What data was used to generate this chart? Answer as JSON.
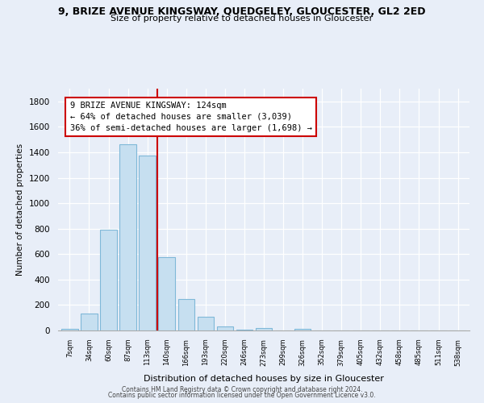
{
  "title": "9, BRIZE AVENUE KINGSWAY, QUEDGELEY, GLOUCESTER, GL2 2ED",
  "subtitle": "Size of property relative to detached houses in Gloucester",
  "xlabel": "Distribution of detached houses by size in Gloucester",
  "ylabel": "Number of detached properties",
  "bar_labels": [
    "7sqm",
    "34sqm",
    "60sqm",
    "87sqm",
    "113sqm",
    "140sqm",
    "166sqm",
    "193sqm",
    "220sqm",
    "246sqm",
    "273sqm",
    "299sqm",
    "326sqm",
    "352sqm",
    "379sqm",
    "405sqm",
    "432sqm",
    "458sqm",
    "485sqm",
    "511sqm",
    "538sqm"
  ],
  "bar_values": [
    15,
    135,
    790,
    1465,
    1375,
    575,
    250,
    110,
    30,
    5,
    20,
    0,
    10,
    0,
    0,
    0,
    0,
    0,
    0,
    0,
    0
  ],
  "bar_color": "#c6dff0",
  "bar_edge_color": "#7fb8d8",
  "vline_color": "#cc0000",
  "annotation_line1": "9 BRIZE AVENUE KINGSWAY: 124sqm",
  "annotation_line2": "← 64% of detached houses are smaller (3,039)",
  "annotation_line3": "36% of semi-detached houses are larger (1,698) →",
  "annotation_box_color": "white",
  "annotation_box_edge_color": "#cc0000",
  "ylim": [
    0,
    1900
  ],
  "yticks": [
    0,
    200,
    400,
    600,
    800,
    1000,
    1200,
    1400,
    1600,
    1800
  ],
  "background_color": "#e8eef8",
  "grid_color": "#ffffff",
  "footer_line1": "Contains HM Land Registry data © Crown copyright and database right 2024.",
  "footer_line2": "Contains public sector information licensed under the Open Government Licence v3.0."
}
